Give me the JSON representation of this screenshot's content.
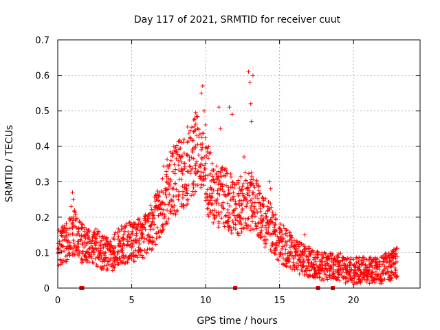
{
  "chart_data": {
    "type": "scatter",
    "title": "Day 117 of 2021, SRMTID for receiver cuut",
    "xlabel": "GPS time / hours",
    "ylabel": "SRMTID / TECUs",
    "xlim": [
      0,
      24.5
    ],
    "ylim": [
      0,
      0.7
    ],
    "xticks": [
      0,
      5,
      10,
      15,
      20
    ],
    "xtick_labels": [
      "0",
      "5",
      "10",
      "15",
      "20"
    ],
    "yticks": [
      0,
      0.1,
      0.2,
      0.3,
      0.4,
      0.5,
      0.6,
      0.7
    ],
    "ytick_labels": [
      "0",
      "0.1",
      "0.2",
      "0.3",
      "0.4",
      "0.5",
      "0.6",
      "0.7"
    ],
    "grid": true,
    "series": [
      {
        "name": "SRMTID",
        "color": "#ff0000",
        "marker": "plus",
        "x": [
          0.0,
          0.3,
          0.6,
          0.9,
          1.2,
          1.5,
          1.8,
          2.1,
          2.4,
          2.7,
          3.0,
          3.3,
          3.6,
          3.9,
          4.2,
          4.5,
          4.8,
          5.1,
          5.4,
          5.7,
          6.0,
          6.3,
          6.6,
          6.9,
          7.2,
          7.5,
          7.8,
          8.1,
          8.4,
          8.7,
          9.0,
          9.3,
          9.6,
          9.9,
          10.2,
          10.5,
          10.8,
          11.1,
          11.4,
          11.7,
          12.0,
          12.3,
          12.6,
          12.9,
          13.2,
          13.5,
          13.8,
          14.1,
          14.4,
          14.7,
          15.0,
          15.3,
          15.6,
          15.9,
          16.2,
          16.5,
          16.8,
          17.1,
          17.4,
          17.7,
          18.0,
          18.3,
          18.6,
          18.9,
          19.2,
          19.5,
          19.8,
          20.1,
          20.4,
          20.7,
          21.0,
          21.3,
          21.6,
          21.9,
          22.2,
          22.5,
          22.7
        ],
        "y": [
          0.11,
          0.12,
          0.13,
          0.15,
          0.16,
          0.13,
          0.12,
          0.11,
          0.12,
          0.11,
          0.1,
          0.1,
          0.09,
          0.11,
          0.12,
          0.12,
          0.13,
          0.13,
          0.14,
          0.14,
          0.15,
          0.17,
          0.19,
          0.22,
          0.26,
          0.28,
          0.3,
          0.31,
          0.33,
          0.34,
          0.36,
          0.38,
          0.36,
          0.34,
          0.3,
          0.27,
          0.26,
          0.27,
          0.25,
          0.24,
          0.22,
          0.23,
          0.24,
          0.25,
          0.24,
          0.22,
          0.2,
          0.18,
          0.17,
          0.15,
          0.13,
          0.12,
          0.11,
          0.1,
          0.09,
          0.08,
          0.08,
          0.07,
          0.07,
          0.06,
          0.06,
          0.06,
          0.06,
          0.06,
          0.06,
          0.05,
          0.05,
          0.05,
          0.05,
          0.05,
          0.05,
          0.05,
          0.05,
          0.05,
          0.06,
          0.06,
          0.07
        ]
      }
    ],
    "outliers": {
      "x": [
        1.0,
        1.05,
        9.7,
        9.8,
        9.9,
        10.0,
        10.9,
        11.0,
        11.6,
        11.8,
        12.9,
        13.0,
        13.05,
        13.1,
        13.2,
        14.3,
        14.4,
        0.9,
        16.7,
        12.6
      ],
      "y": [
        0.27,
        0.25,
        0.55,
        0.57,
        0.5,
        0.46,
        0.51,
        0.45,
        0.51,
        0.49,
        0.61,
        0.58,
        0.52,
        0.47,
        0.6,
        0.3,
        0.28,
        0.23,
        0.15,
        0.37
      ]
    },
    "ground_markers": {
      "x": [
        1.6,
        1.65,
        12.0,
        17.6,
        18.6
      ],
      "y": [
        0,
        0,
        0,
        0,
        0
      ]
    }
  }
}
